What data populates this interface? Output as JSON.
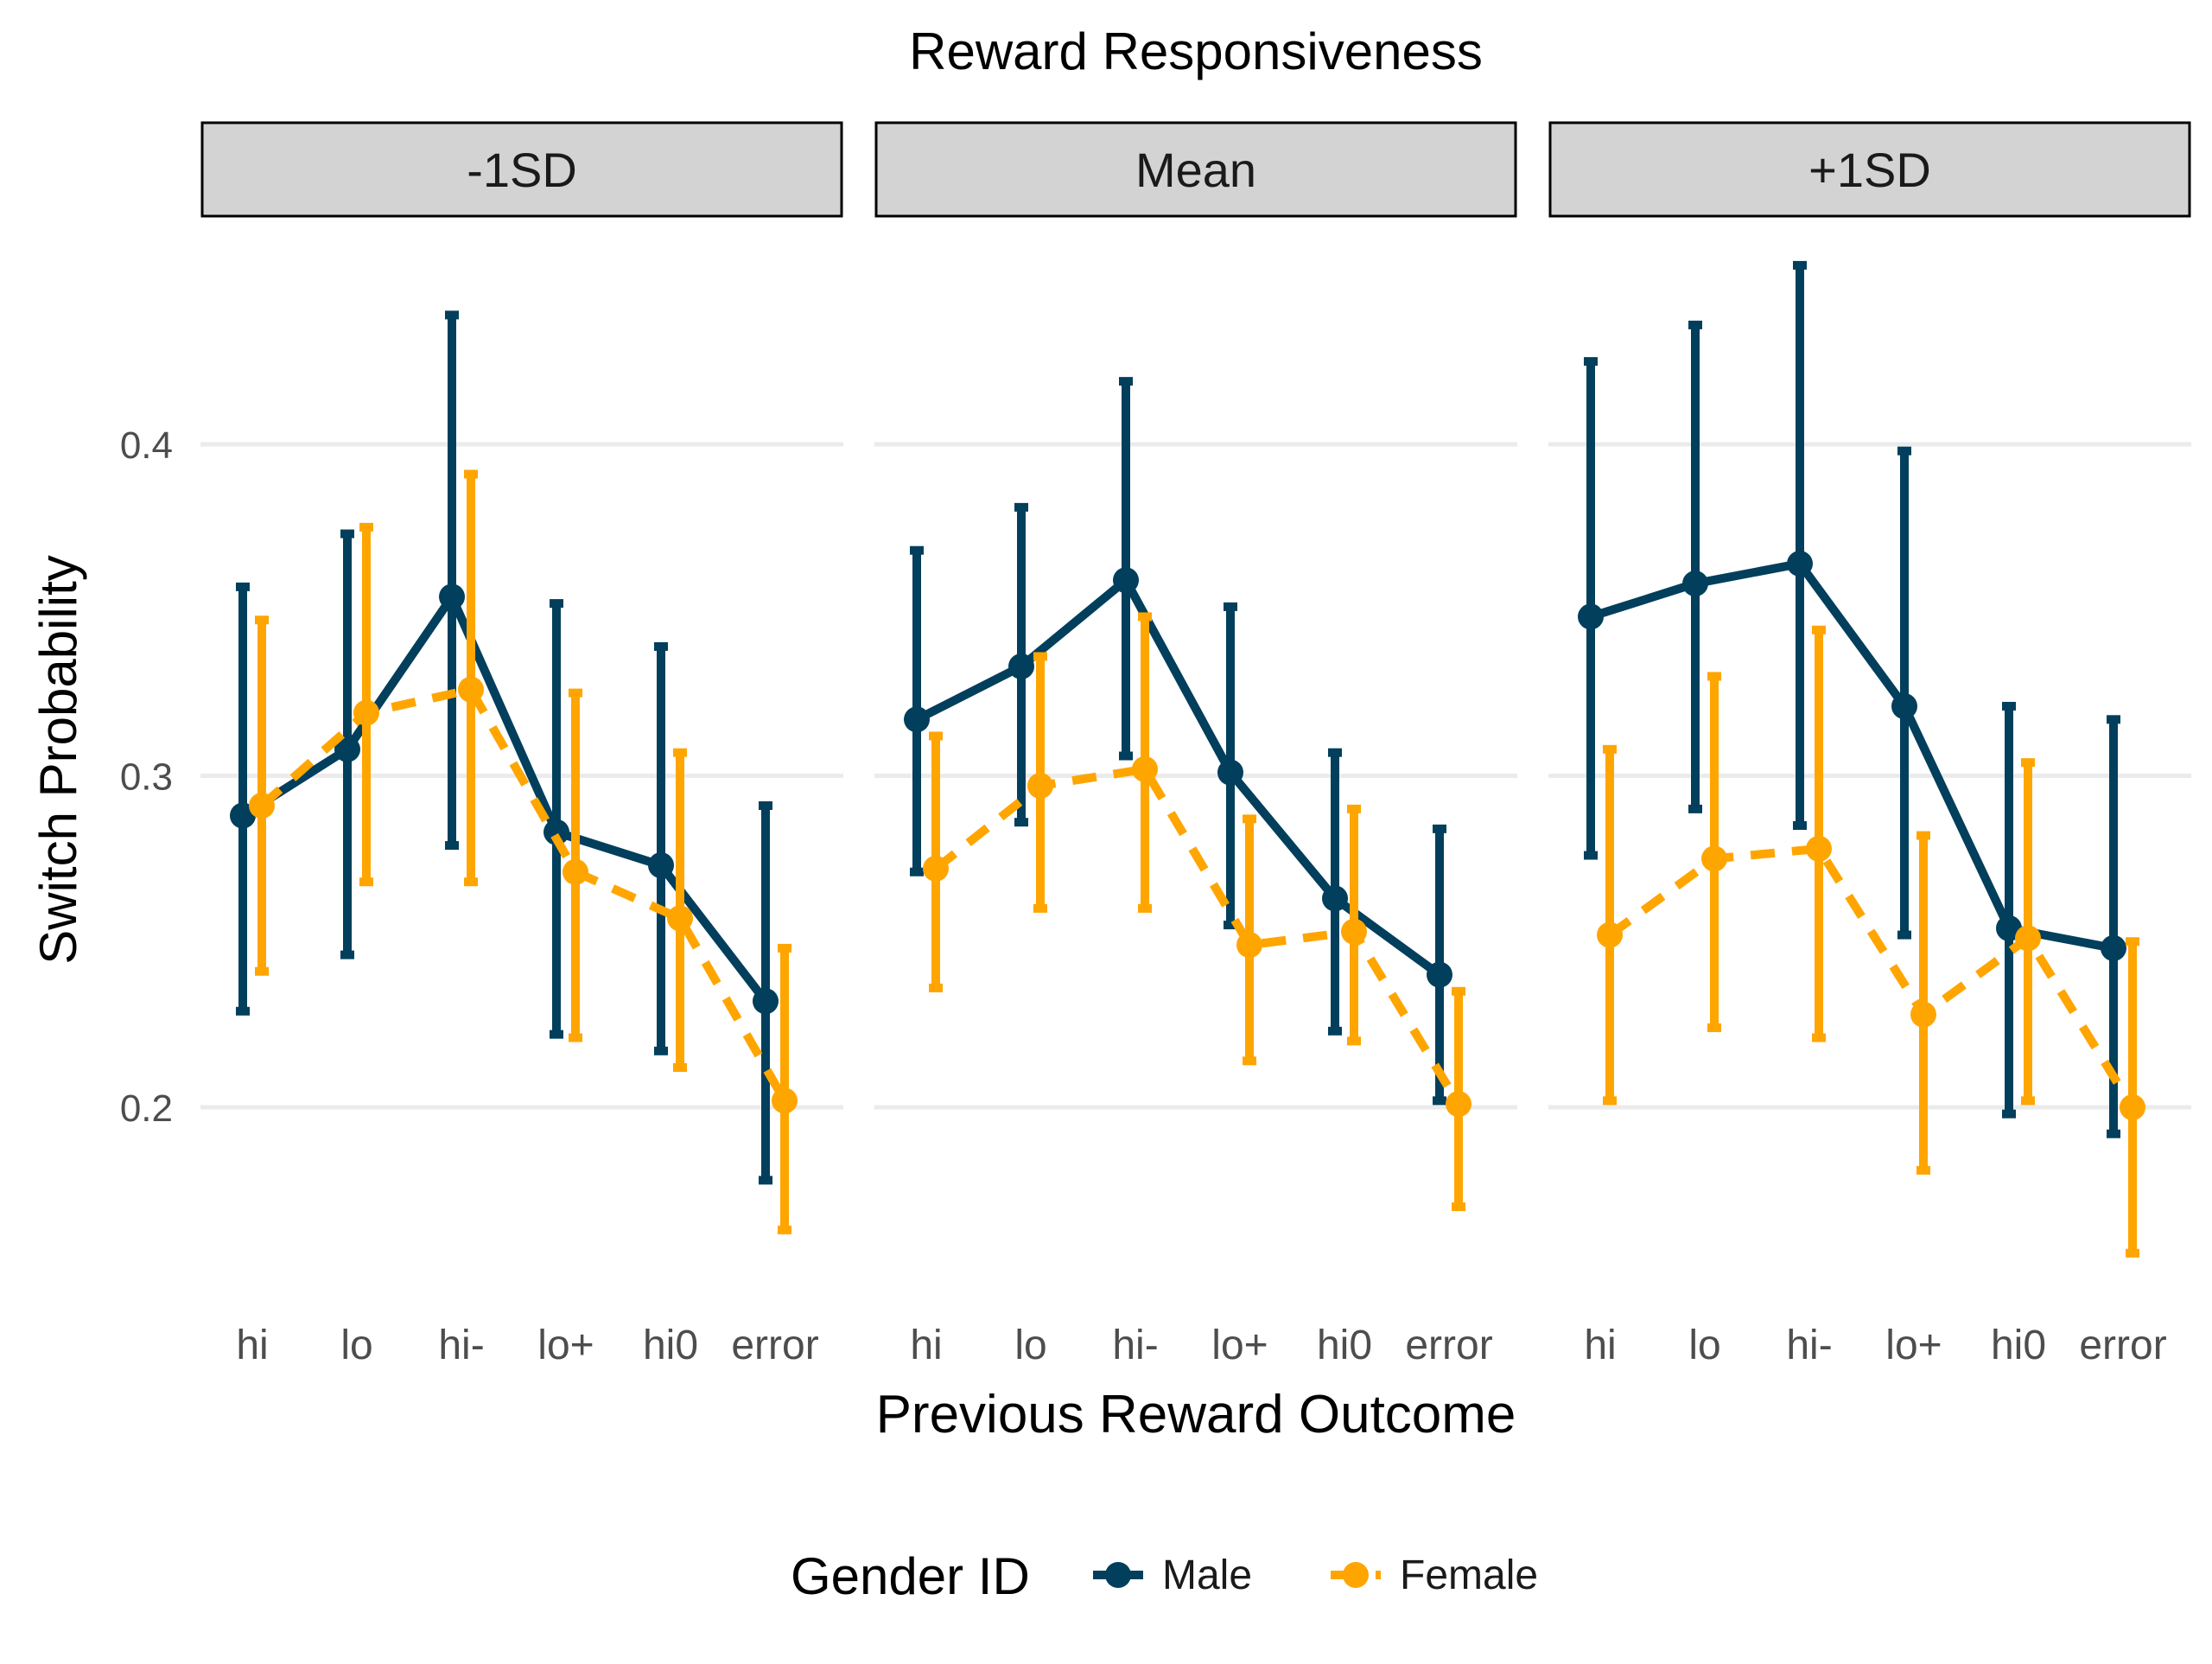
{
  "chart_data": {
    "type": "line",
    "title": "Reward Responsiveness",
    "xlabel": "Previous Reward Outcome",
    "ylabel": "Switch Probability",
    "yticks": [
      0.2,
      0.3,
      0.4
    ],
    "ytick_labels": [
      "0.2",
      "0.3",
      "0.4"
    ],
    "ylim": [
      0.14,
      0.47
    ],
    "grid": true,
    "legend": {
      "title": "Gender ID",
      "position": "bottom"
    },
    "categories": [
      "hi",
      "lo",
      "hi-",
      "lo+",
      "hi0",
      "error"
    ],
    "series_styles": [
      {
        "name": "Male",
        "color": "#023f5c",
        "dash": "solid"
      },
      {
        "name": "Female",
        "color": "#ffa500",
        "dash": "dashed"
      }
    ],
    "panels": [
      {
        "label": "-1SD",
        "series": [
          {
            "name": "Male",
            "values": [
              0.288,
              0.308,
              0.354,
              0.283,
              0.273,
              0.232
            ],
            "lower": [
              0.229,
              0.246,
              0.279,
              0.222,
              0.217,
              0.178
            ],
            "upper": [
              0.357,
              0.373,
              0.439,
              0.352,
              0.339,
              0.291
            ]
          },
          {
            "name": "Female",
            "values": [
              0.291,
              0.319,
              0.326,
              0.271,
              0.257,
              0.202
            ],
            "lower": [
              0.241,
              0.268,
              0.268,
              0.221,
              0.212,
              0.163
            ],
            "upper": [
              0.347,
              0.375,
              0.391,
              0.325,
              0.307,
              0.248
            ]
          }
        ]
      },
      {
        "label": "Mean",
        "series": [
          {
            "name": "Male",
            "values": [
              0.317,
              0.333,
              0.359,
              0.301,
              0.263,
              0.24
            ],
            "lower": [
              0.271,
              0.286,
              0.306,
              0.255,
              0.223,
              0.202
            ],
            "upper": [
              0.368,
              0.381,
              0.419,
              0.351,
              0.307,
              0.284
            ]
          },
          {
            "name": "Female",
            "values": [
              0.272,
              0.297,
              0.302,
              0.249,
              0.253,
              0.201
            ],
            "lower": [
              0.236,
              0.26,
              0.26,
              0.214,
              0.22,
              0.17
            ],
            "upper": [
              0.312,
              0.336,
              0.348,
              0.287,
              0.29,
              0.235
            ]
          }
        ]
      },
      {
        "label": "+1SD",
        "series": [
          {
            "name": "Male",
            "values": [
              0.348,
              0.358,
              0.364,
              0.321,
              0.254,
              0.248
            ],
            "lower": [
              0.276,
              0.29,
              0.285,
              0.252,
              0.198,
              0.192
            ],
            "upper": [
              0.425,
              0.436,
              0.454,
              0.398,
              0.321,
              0.317
            ]
          },
          {
            "name": "Female",
            "values": [
              0.252,
              0.275,
              0.278,
              0.228,
              0.251,
              0.2
            ],
            "lower": [
              0.202,
              0.224,
              0.221,
              0.181,
              0.202,
              0.156
            ],
            "upper": [
              0.308,
              0.33,
              0.344,
              0.282,
              0.304,
              0.25
            ]
          }
        ]
      }
    ]
  }
}
